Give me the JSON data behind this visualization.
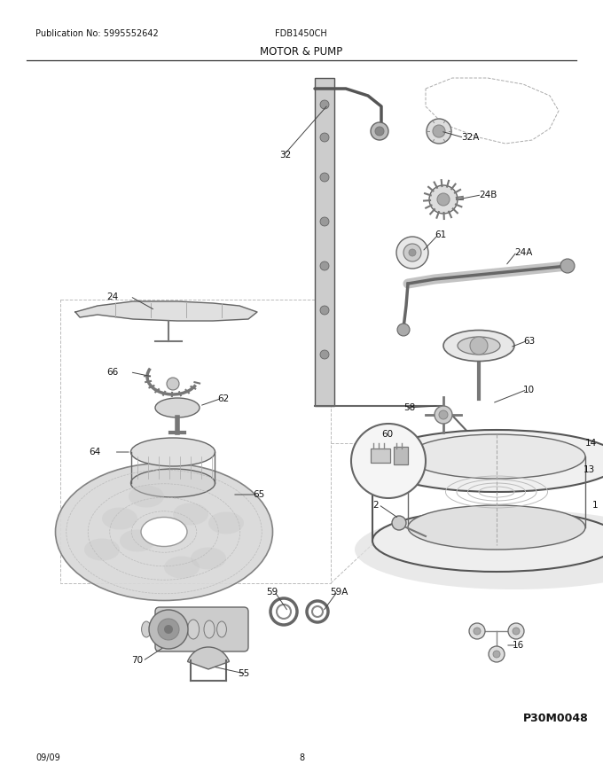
{
  "title": "MOTOR & PUMP",
  "pub_no": "Publication No: 5995552642",
  "model": "FDB1450CH",
  "date": "09/09",
  "page": "8",
  "part_id": "P30M0048",
  "bg_color": "#ffffff",
  "line_color": "#333333",
  "text_color": "#111111",
  "label_fontsize": 7.5,
  "title_fontsize": 8.5,
  "header_fontsize": 7,
  "fig_w": 6.8,
  "fig_h": 8.8,
  "dpi": 100,
  "xmax": 680,
  "ymax": 880
}
